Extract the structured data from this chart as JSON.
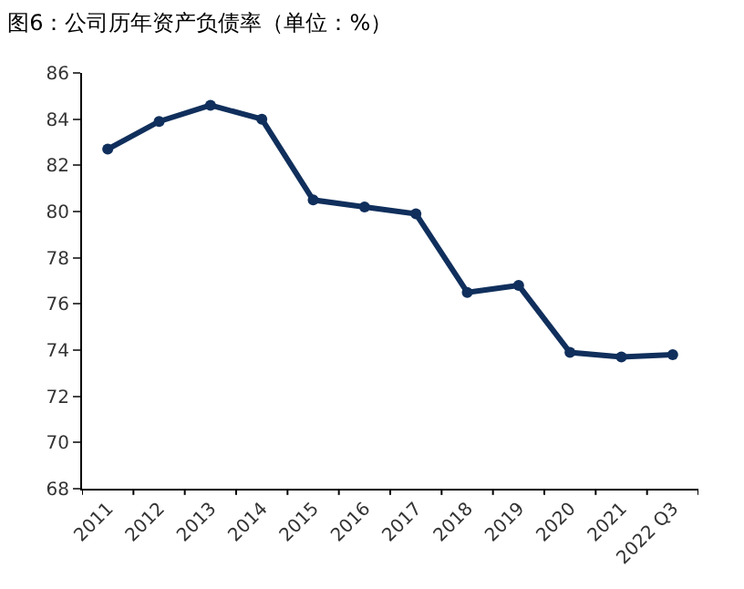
{
  "chart_data": {
    "type": "line",
    "title": "图6：公司历年资产负债率（单位：%）",
    "categories": [
      "2011",
      "2012",
      "2013",
      "2014",
      "2015",
      "2016",
      "2017",
      "2018",
      "2019",
      "2020",
      "2021",
      "2022 Q3"
    ],
    "series": [
      {
        "color": "#102f5c",
        "values": [
          82.7,
          83.9,
          84.6,
          84.0,
          80.5,
          80.2,
          79.9,
          76.5,
          76.8,
          73.9,
          73.7,
          73.8
        ]
      }
    ],
    "ylim": [
      68,
      86
    ],
    "yticks": [
      68,
      70,
      72,
      74,
      76,
      78,
      80,
      82,
      84,
      86
    ],
    "marker": "circle",
    "line_style": "solid"
  }
}
